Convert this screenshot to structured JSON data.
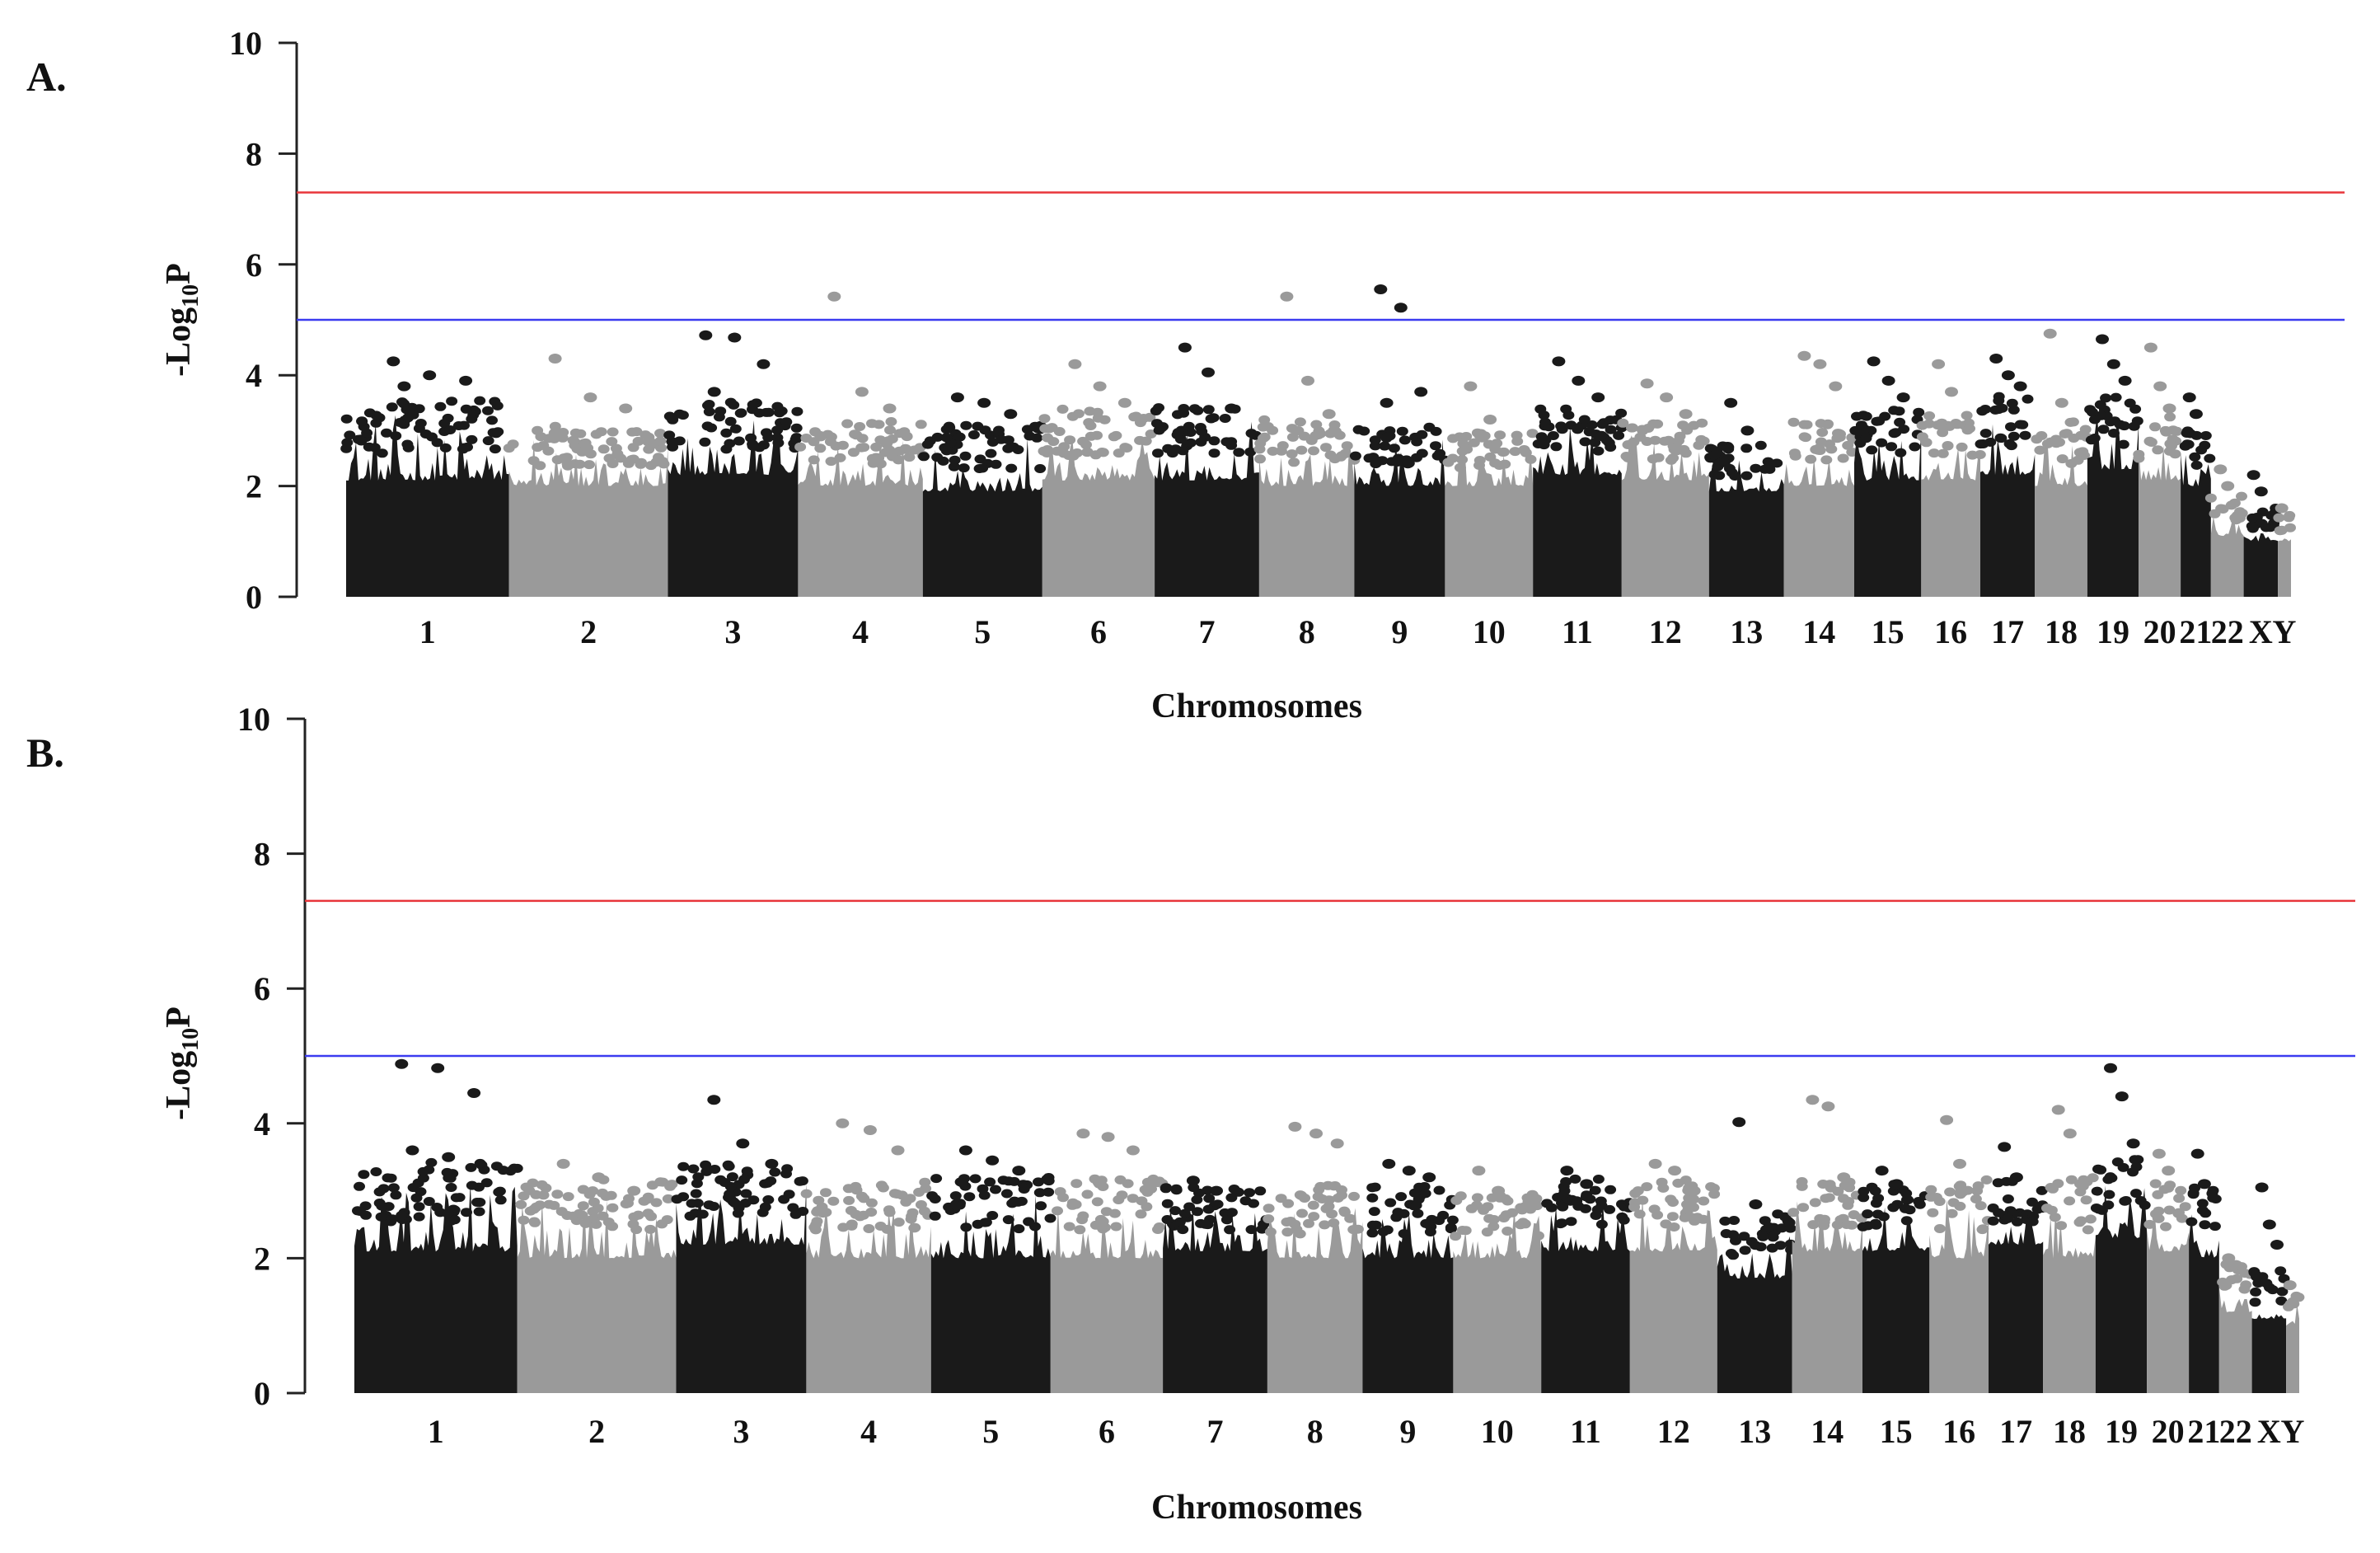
{
  "colors": {
    "dark": "#1a1a1a",
    "light": "#9a9a9a",
    "genome_wide_line": "#e8353a",
    "suggestive_line": "#3b3bf0"
  },
  "chart_data": [
    {
      "type": "scatter",
      "panel_label": "A.",
      "title": "",
      "xlabel": "Chromosomes",
      "ylabel_main": "-Log",
      "ylabel_sub": "10",
      "ylabel_tail": "P",
      "ylim": [
        0,
        10
      ],
      "yticks": [
        "0",
        "2",
        "4",
        "6",
        "8",
        "10"
      ],
      "grid": false,
      "threshold_lines": [
        {
          "name": "genome-wide",
          "y": 7.3,
          "color": "red"
        },
        {
          "name": "suggestive",
          "y": 5.0,
          "color": "blue"
        }
      ],
      "chromosomes": [
        {
          "label": "1",
          "size": 248,
          "base": 2.1,
          "peak": 3.3,
          "tops": [
            4.25,
            4.0,
            3.9,
            3.8
          ]
        },
        {
          "label": "2",
          "size": 242,
          "base": 2.0,
          "peak": 2.9,
          "tops": [
            4.3,
            3.6,
            3.4
          ]
        },
        {
          "label": "3",
          "size": 198,
          "base": 2.2,
          "peak": 3.3,
          "tops": [
            4.72,
            4.68,
            4.2,
            3.7
          ]
        },
        {
          "label": "4",
          "size": 190,
          "base": 2.0,
          "peak": 3.0,
          "tops": [
            5.42,
            3.7,
            3.4
          ]
        },
        {
          "label": "5",
          "size": 182,
          "base": 1.9,
          "peak": 2.9,
          "tops": [
            3.6,
            3.5,
            3.3
          ]
        },
        {
          "label": "6",
          "size": 171,
          "base": 2.1,
          "peak": 3.2,
          "tops": [
            4.2,
            3.8,
            3.5
          ]
        },
        {
          "label": "7",
          "size": 159,
          "base": 2.1,
          "peak": 3.2,
          "tops": [
            4.5,
            4.05,
            3.4
          ]
        },
        {
          "label": "8",
          "size": 145,
          "base": 2.0,
          "peak": 3.0,
          "tops": [
            5.42,
            3.9,
            3.3
          ]
        },
        {
          "label": "9",
          "size": 138,
          "base": 2.0,
          "peak": 2.9,
          "tops": [
            5.55,
            5.22,
            3.7,
            3.5
          ]
        },
        {
          "label": "10",
          "size": 134,
          "base": 2.0,
          "peak": 2.8,
          "tops": [
            3.8,
            3.2
          ]
        },
        {
          "label": "11",
          "size": 135,
          "base": 2.2,
          "peak": 3.2,
          "tops": [
            4.25,
            3.9,
            3.6
          ]
        },
        {
          "label": "12",
          "size": 133,
          "base": 2.1,
          "peak": 3.0,
          "tops": [
            3.85,
            3.6,
            3.3
          ]
        },
        {
          "label": "13",
          "size": 114,
          "base": 1.9,
          "peak": 2.6,
          "tops": [
            3.5,
            3.0
          ]
        },
        {
          "label": "14",
          "size": 107,
          "base": 2.0,
          "peak": 3.0,
          "tops": [
            4.35,
            4.2,
            3.8
          ]
        },
        {
          "label": "15",
          "size": 102,
          "base": 2.1,
          "peak": 3.2,
          "tops": [
            4.25,
            3.9,
            3.6
          ]
        },
        {
          "label": "16",
          "size": 90,
          "base": 2.1,
          "peak": 3.1,
          "tops": [
            4.2,
            3.7
          ]
        },
        {
          "label": "17",
          "size": 83,
          "base": 2.2,
          "peak": 3.4,
          "tops": [
            4.3,
            4.0,
            3.8
          ]
        },
        {
          "label": "18",
          "size": 80,
          "base": 2.0,
          "peak": 3.0,
          "tops": [
            4.75,
            3.5
          ]
        },
        {
          "label": "19",
          "size": 78,
          "base": 2.3,
          "peak": 3.4,
          "tops": [
            4.65,
            4.2,
            3.9
          ]
        },
        {
          "label": "20",
          "size": 64,
          "base": 2.1,
          "peak": 3.1,
          "tops": [
            4.5,
            3.8,
            3.4
          ]
        },
        {
          "label": "21",
          "size": 46,
          "base": 2.0,
          "peak": 2.9,
          "tops": [
            3.6,
            3.3
          ]
        },
        {
          "label": "22",
          "size": 50,
          "base": 1.1,
          "peak": 1.7,
          "tops": [
            2.3,
            2.0
          ]
        },
        {
          "label": "X",
          "size": 52,
          "base": 1.0,
          "peak": 1.5,
          "tops": [
            2.2,
            1.9
          ]
        },
        {
          "label": "Y",
          "size": 20,
          "base": 1.0,
          "peak": 1.4,
          "tops": [
            1.6
          ]
        }
      ]
    },
    {
      "type": "scatter",
      "panel_label": "B.",
      "title": "",
      "xlabel": "Chromosomes",
      "ylabel_main": "-Log",
      "ylabel_sub": "10",
      "ylabel_tail": "P",
      "ylim": [
        0,
        10
      ],
      "yticks": [
        "0",
        "2",
        "4",
        "6",
        "8",
        "10"
      ],
      "grid": false,
      "threshold_lines": [
        {
          "name": "genome-wide",
          "y": 7.3,
          "color": "red"
        },
        {
          "name": "suggestive",
          "y": 5.0,
          "color": "blue"
        }
      ],
      "chromosomes": [
        {
          "label": "1",
          "size": 248,
          "base": 2.1,
          "peak": 3.2,
          "tops": [
            4.88,
            4.82,
            4.45,
            3.6,
            3.5
          ]
        },
        {
          "label": "2",
          "size": 242,
          "base": 2.0,
          "peak": 3.0,
          "tops": [
            3.4,
            3.2,
            3.0
          ]
        },
        {
          "label": "3",
          "size": 198,
          "base": 2.2,
          "peak": 3.2,
          "tops": [
            4.35,
            3.7,
            3.4
          ]
        },
        {
          "label": "4",
          "size": 190,
          "base": 2.0,
          "peak": 3.0,
          "tops": [
            4.0,
            3.9,
            3.6
          ]
        },
        {
          "label": "5",
          "size": 182,
          "base": 2.0,
          "peak": 3.0,
          "tops": [
            3.6,
            3.45,
            3.3
          ]
        },
        {
          "label": "6",
          "size": 171,
          "base": 2.0,
          "peak": 3.0,
          "tops": [
            3.85,
            3.8,
            3.6
          ]
        },
        {
          "label": "7",
          "size": 159,
          "base": 2.1,
          "peak": 2.9,
          "tops": [
            3.15,
            3.0
          ]
        },
        {
          "label": "8",
          "size": 145,
          "base": 2.0,
          "peak": 2.9,
          "tops": [
            3.95,
            3.85,
            3.7
          ]
        },
        {
          "label": "9",
          "size": 138,
          "base": 2.0,
          "peak": 2.9,
          "tops": [
            3.4,
            3.3,
            3.2
          ]
        },
        {
          "label": "10",
          "size": 134,
          "base": 2.0,
          "peak": 2.8,
          "tops": [
            3.3,
            3.0
          ]
        },
        {
          "label": "11",
          "size": 135,
          "base": 2.1,
          "peak": 3.0,
          "tops": [
            3.3,
            3.1
          ]
        },
        {
          "label": "12",
          "size": 133,
          "base": 2.1,
          "peak": 3.0,
          "tops": [
            3.4,
            3.3,
            3.0
          ]
        },
        {
          "label": "13",
          "size": 114,
          "base": 1.7,
          "peak": 2.5,
          "tops": [
            4.02,
            2.8
          ]
        },
        {
          "label": "14",
          "size": 107,
          "base": 2.1,
          "peak": 3.0,
          "tops": [
            4.35,
            4.25,
            3.2
          ]
        },
        {
          "label": "15",
          "size": 102,
          "base": 2.1,
          "peak": 3.0,
          "tops": [
            3.3,
            3.1
          ]
        },
        {
          "label": "16",
          "size": 90,
          "base": 2.0,
          "peak": 3.0,
          "tops": [
            4.05,
            3.4
          ]
        },
        {
          "label": "17",
          "size": 83,
          "base": 2.2,
          "peak": 3.0,
          "tops": [
            3.65,
            3.2
          ]
        },
        {
          "label": "18",
          "size": 80,
          "base": 2.0,
          "peak": 3.0,
          "tops": [
            4.2,
            3.85
          ]
        },
        {
          "label": "19",
          "size": 78,
          "base": 2.3,
          "peak": 3.3,
          "tops": [
            4.82,
            4.4,
            3.7
          ]
        },
        {
          "label": "20",
          "size": 64,
          "base": 2.1,
          "peak": 3.0,
          "tops": [
            3.55,
            3.3
          ]
        },
        {
          "label": "21",
          "size": 46,
          "base": 2.0,
          "peak": 2.9,
          "tops": [
            3.55,
            3.1
          ]
        },
        {
          "label": "22",
          "size": 50,
          "base": 1.2,
          "peak": 1.8,
          "tops": [
            2.0,
            1.9
          ]
        },
        {
          "label": "X",
          "size": 52,
          "base": 1.1,
          "peak": 1.7,
          "tops": [
            3.05,
            2.5,
            2.2
          ]
        },
        {
          "label": "Y",
          "size": 20,
          "base": 1.0,
          "peak": 1.4,
          "tops": [
            1.6
          ]
        }
      ]
    }
  ]
}
